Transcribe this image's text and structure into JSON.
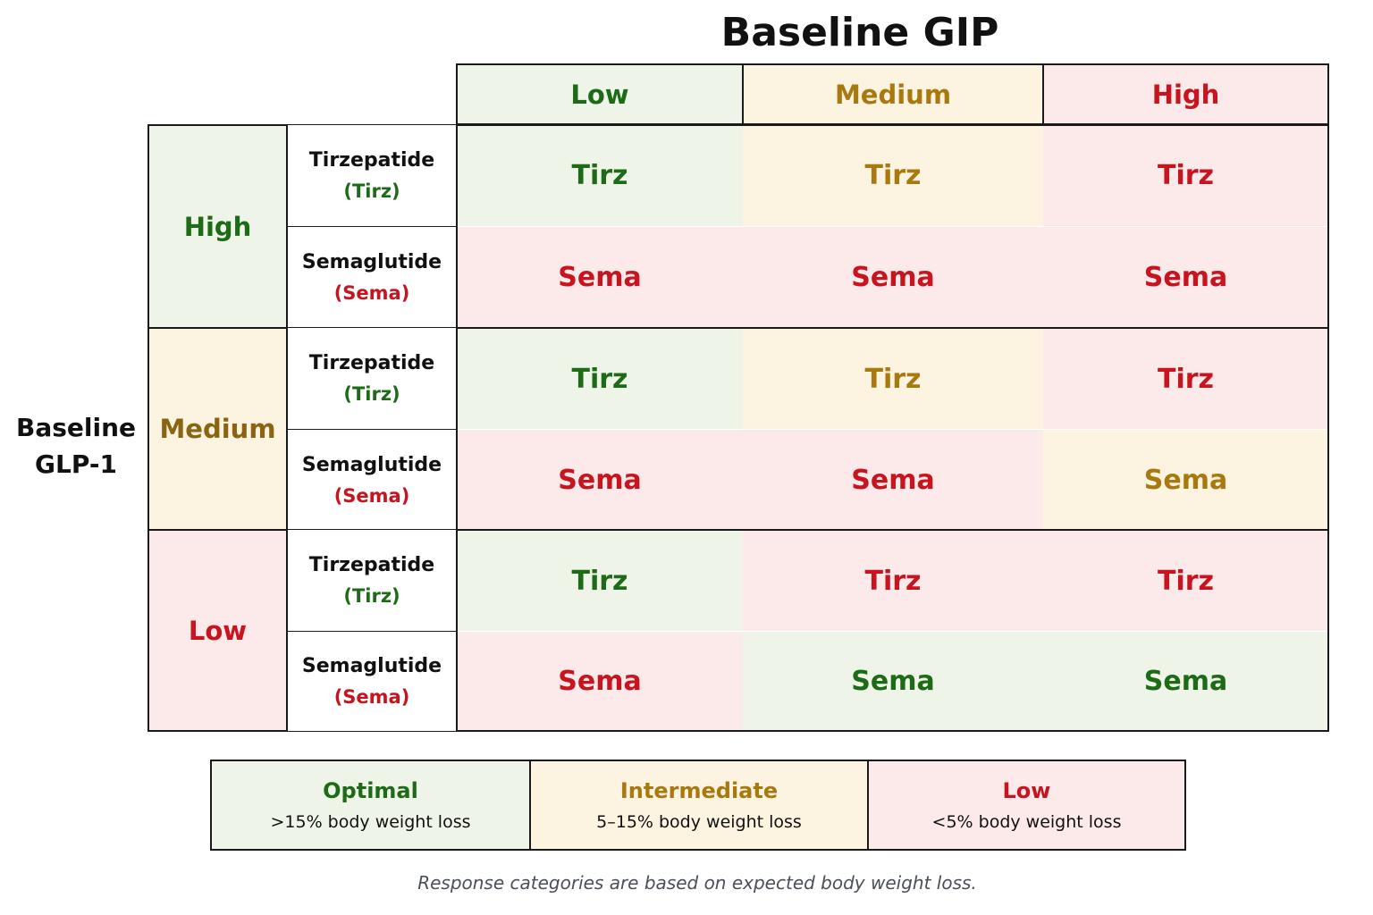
{
  "title": "Baseline GIP",
  "y_axis": {
    "line1": "Baseline",
    "line2": "GLP-1"
  },
  "gip_levels": [
    "Low",
    "Medium",
    "High"
  ],
  "glp1_levels": [
    "High",
    "Medium",
    "Low"
  ],
  "drugs": [
    {
      "name": "Tirzepatide",
      "abbr": "(Tirz)",
      "short": "Tirz"
    },
    {
      "name": "Semaglutide",
      "abbr": "(Sema)",
      "short": "Sema"
    }
  ],
  "colors": {
    "optimal_text": "#1d6b16",
    "optimal_bg": "#eef5e8",
    "intermediate_text": "#a8790e",
    "intermediate_bg": "#fcf3e0",
    "low_text": "#c8141e",
    "low_bg": "#fce9e9",
    "tirz_abbr": "#1d6b16",
    "sema_abbr": "#c8141e"
  },
  "grid": [
    {
      "glp1": "High",
      "drug": "Tirz",
      "values": [
        "Tirz",
        "Tirz",
        "Tirz"
      ],
      "categories": [
        "optimal",
        "intermediate",
        "low"
      ]
    },
    {
      "glp1": "High",
      "drug": "Sema",
      "values": [
        "Sema",
        "Sema",
        "Sema"
      ],
      "categories": [
        "low",
        "low",
        "low"
      ]
    },
    {
      "glp1": "Medium",
      "drug": "Tirz",
      "values": [
        "Tirz",
        "Tirz",
        "Tirz"
      ],
      "categories": [
        "optimal",
        "intermediate",
        "low"
      ]
    },
    {
      "glp1": "Medium",
      "drug": "Sema",
      "values": [
        "Sema",
        "Sema",
        "Sema"
      ],
      "categories": [
        "low",
        "low",
        "intermediate"
      ]
    },
    {
      "glp1": "Low",
      "drug": "Tirz",
      "values": [
        "Tirz",
        "Tirz",
        "Tirz"
      ],
      "categories": [
        "optimal",
        "low",
        "low"
      ]
    },
    {
      "glp1": "Low",
      "drug": "Sema",
      "values": [
        "Sema",
        "Sema",
        "Sema"
      ],
      "categories": [
        "low",
        "optimal",
        "optimal"
      ]
    }
  ],
  "legend": [
    {
      "key": "optimal",
      "label": "Optimal",
      "desc": ">15% body weight loss"
    },
    {
      "key": "intermediate",
      "label": "Intermediate",
      "desc": "5–15% body weight loss"
    },
    {
      "key": "low",
      "label": "Low",
      "desc": "<5% body weight loss"
    }
  ],
  "note": "Response categories are based on expected body weight loss."
}
